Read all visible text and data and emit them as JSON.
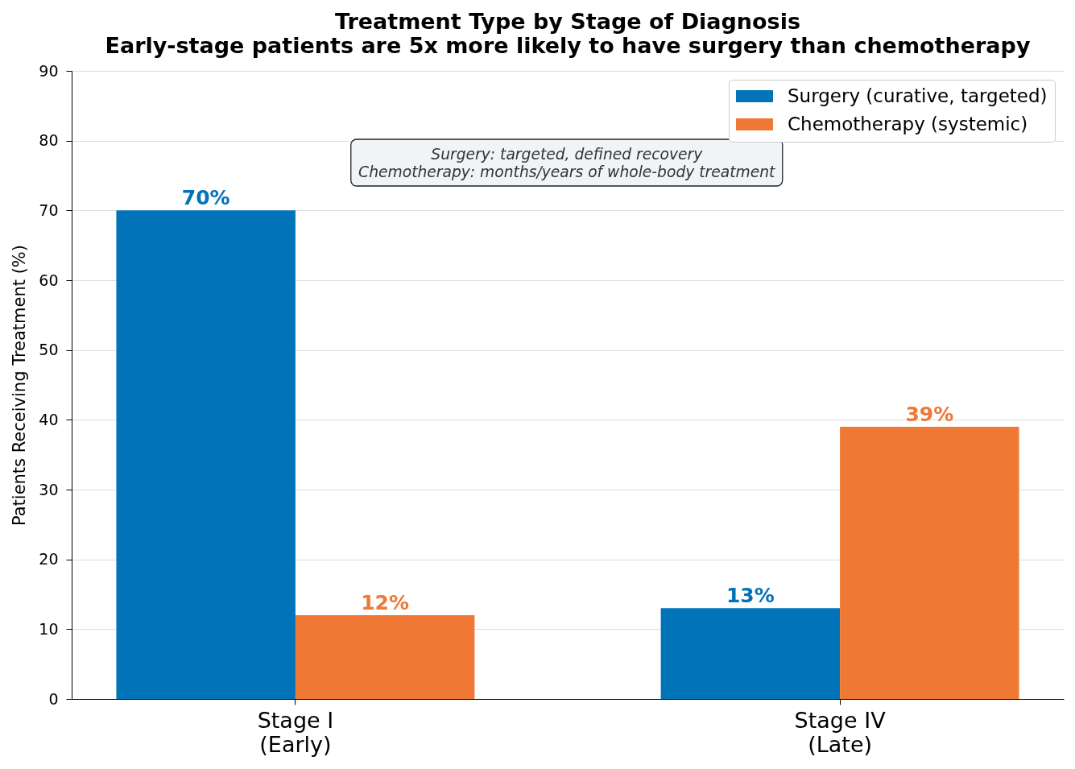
{
  "chart_data": {
    "type": "bar",
    "title": "Treatment Type by Stage of Diagnosis",
    "subtitle": "Early-stage patients are 5x more likely to have surgery than chemotherapy",
    "ylabel": "Patients Receiving Treatment (%)",
    "categories": [
      "Stage I\n(Early)",
      "Stage IV\n(Late)"
    ],
    "series": [
      {
        "name": "Surgery (curative, targeted)",
        "color": "#0173b8",
        "values": [
          70,
          13
        ],
        "value_labels": [
          "70%",
          "13%"
        ]
      },
      {
        "name": "Chemotherapy (systemic)",
        "color": "#ef7834",
        "values": [
          12,
          39
        ],
        "value_labels": [
          "12%",
          "39%"
        ]
      }
    ],
    "ylim": [
      0,
      90
    ],
    "yticks": [
      0,
      10,
      20,
      30,
      40,
      50,
      60,
      70,
      80,
      90
    ],
    "grid": "y",
    "legend": "top right",
    "annotations": [
      "Surgery: targeted, defined recovery\nChemotherapy: months/years of whole-body treatment"
    ]
  }
}
